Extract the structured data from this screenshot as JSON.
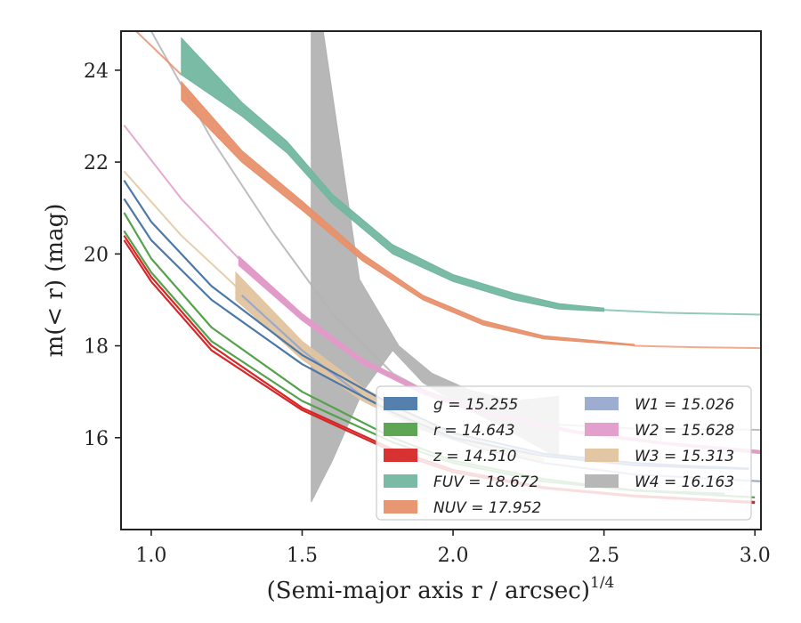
{
  "chart_data": {
    "type": "line",
    "xlabel": "(Semi-major axis r / arcsec)",
    "xlabel_sup": "1/4",
    "ylabel": "m(< r) (mag)",
    "xlim": [
      0.9,
      3.02
    ],
    "ylim": [
      24.85,
      14.0
    ],
    "xticks": [
      {
        "v": 1.0,
        "label": "1.0"
      },
      {
        "v": 1.5,
        "label": "1.5"
      },
      {
        "v": 2.0,
        "label": "2.0"
      },
      {
        "v": 2.5,
        "label": "2.5"
      },
      {
        "v": 3.0,
        "label": "3.0"
      }
    ],
    "yticks": [
      {
        "v": 16,
        "label": "16"
      },
      {
        "v": 18,
        "label": "18"
      },
      {
        "v": 20,
        "label": "20"
      },
      {
        "v": 22,
        "label": "22"
      },
      {
        "v": 24,
        "label": "24"
      }
    ],
    "legend_position": "lower-right",
    "series": [
      {
        "name": "g = 15.255",
        "color": "#4c78a8",
        "type": "line",
        "lines": [
          [
            [
              0.91,
              21.2
            ],
            [
              1.0,
              20.3
            ],
            [
              1.2,
              19.0
            ],
            [
              1.5,
              17.6
            ],
            [
              1.8,
              16.55
            ],
            [
              2.0,
              16.0
            ],
            [
              2.3,
              15.6
            ],
            [
              2.6,
              15.4
            ],
            [
              2.8,
              15.35
            ],
            [
              2.98,
              15.32
            ]
          ],
          [
            [
              0.91,
              21.6
            ],
            [
              1.0,
              20.7
            ],
            [
              1.2,
              19.3
            ],
            [
              1.5,
              17.8
            ],
            [
              1.8,
              16.7
            ],
            [
              2.0,
              16.1
            ],
            [
              2.3,
              15.65
            ],
            [
              2.6,
              15.45
            ],
            [
              2.8,
              15.38
            ],
            [
              2.98,
              15.33
            ]
          ]
        ]
      },
      {
        "name": "r = 14.643",
        "color": "#54a24b",
        "type": "line",
        "lines": [
          [
            [
              0.91,
              20.5
            ],
            [
              1.0,
              19.6
            ],
            [
              1.2,
              18.1
            ],
            [
              1.5,
              16.8
            ],
            [
              1.8,
              15.9
            ],
            [
              2.0,
              15.45
            ],
            [
              2.3,
              15.05
            ],
            [
              2.6,
              14.85
            ],
            [
              2.9,
              14.78
            ]
          ],
          [
            [
              0.91,
              20.9
            ],
            [
              1.0,
              19.9
            ],
            [
              1.2,
              18.4
            ],
            [
              1.5,
              17.0
            ],
            [
              1.8,
              16.0
            ],
            [
              2.0,
              15.5
            ],
            [
              2.3,
              15.1
            ],
            [
              2.6,
              14.85
            ],
            [
              3.0,
              14.7
            ]
          ]
        ]
      },
      {
        "name": "z = 14.510",
        "color": "#d62728",
        "type": "line",
        "lines": [
          [
            [
              0.91,
              20.3
            ],
            [
              1.0,
              19.4
            ],
            [
              1.2,
              17.9
            ],
            [
              1.5,
              16.6
            ],
            [
              1.8,
              15.7
            ],
            [
              2.0,
              15.25
            ],
            [
              2.3,
              14.9
            ],
            [
              2.6,
              14.72
            ],
            [
              3.0,
              14.58
            ]
          ],
          [
            [
              0.91,
              20.4
            ],
            [
              1.0,
              19.5
            ],
            [
              1.2,
              18.0
            ],
            [
              1.5,
              16.65
            ],
            [
              1.8,
              15.75
            ],
            [
              2.0,
              15.3
            ],
            [
              2.3,
              14.92
            ],
            [
              2.6,
              14.74
            ],
            [
              3.0,
              14.6
            ]
          ]
        ]
      },
      {
        "name": "FUV = 18.672",
        "color": "#72b7a0",
        "type": "band",
        "upper": [
          [
            1.1,
            23.9
          ],
          [
            1.3,
            23.0
          ],
          [
            1.45,
            22.2
          ],
          [
            1.6,
            21.1
          ],
          [
            1.8,
            20.0
          ],
          [
            2.0,
            19.4
          ],
          [
            2.2,
            19.0
          ],
          [
            2.35,
            18.8
          ],
          [
            2.5,
            18.75
          ]
        ],
        "lower": [
          [
            1.1,
            24.7
          ],
          [
            1.3,
            23.3
          ],
          [
            1.45,
            22.45
          ],
          [
            1.6,
            21.3
          ],
          [
            1.8,
            20.2
          ],
          [
            2.0,
            19.55
          ],
          [
            2.2,
            19.15
          ],
          [
            2.35,
            18.92
          ],
          [
            2.5,
            18.82
          ]
        ],
        "tail": [
          [
            2.5,
            18.78
          ],
          [
            2.7,
            18.72
          ],
          [
            3.02,
            18.68
          ]
        ]
      },
      {
        "name": "NUV = 17.952",
        "color": "#e8906c",
        "type": "band",
        "head": [
          [
            0.95,
            24.85
          ],
          [
            1.1,
            23.9
          ]
        ],
        "upper": [
          [
            1.1,
            23.35
          ],
          [
            1.3,
            22.0
          ],
          [
            1.5,
            20.95
          ],
          [
            1.7,
            19.85
          ],
          [
            1.9,
            19.0
          ],
          [
            2.1,
            18.45
          ],
          [
            2.3,
            18.15
          ],
          [
            2.6,
            18.0
          ]
        ],
        "lower": [
          [
            1.1,
            23.75
          ],
          [
            1.3,
            22.25
          ],
          [
            1.5,
            21.15
          ],
          [
            1.7,
            20.0
          ],
          [
            1.9,
            19.1
          ],
          [
            2.1,
            18.55
          ],
          [
            2.3,
            18.22
          ],
          [
            2.6,
            18.03
          ]
        ],
        "tail": [
          [
            2.6,
            18.0
          ],
          [
            2.8,
            17.97
          ],
          [
            3.02,
            17.95
          ]
        ]
      },
      {
        "name": "W1 = 15.026",
        "color": "#98a9cc",
        "type": "line",
        "lines": [
          [
            [
              1.3,
              19.1
            ],
            [
              1.5,
              17.9
            ],
            [
              1.7,
              16.9
            ],
            [
              1.9,
              16.2
            ],
            [
              2.1,
              15.75
            ],
            [
              2.3,
              15.45
            ],
            [
              2.6,
              15.2
            ],
            [
              3.02,
              15.05
            ]
          ]
        ]
      },
      {
        "name": "W2 = 15.628",
        "color": "#e29bc9",
        "type": "line",
        "head": [
          [
            0.91,
            22.8
          ],
          [
            1.1,
            21.2
          ],
          [
            1.29,
            19.9
          ]
        ],
        "band_upper": [
          [
            1.29,
            19.75
          ],
          [
            1.5,
            18.55
          ],
          [
            1.7,
            17.6
          ],
          [
            1.9,
            16.95
          ],
          [
            2.1,
            16.5
          ],
          [
            2.4,
            16.1
          ],
          [
            2.7,
            15.85
          ],
          [
            3.02,
            15.65
          ]
        ],
        "band_lower": [
          [
            1.29,
            19.95
          ],
          [
            1.5,
            18.7
          ],
          [
            1.7,
            17.72
          ],
          [
            1.9,
            17.05
          ],
          [
            2.1,
            16.58
          ],
          [
            2.4,
            16.16
          ],
          [
            2.7,
            15.9
          ],
          [
            3.02,
            15.72
          ]
        ]
      },
      {
        "name": "W3 = 15.313",
        "color": "#e2c49f",
        "type": "band",
        "head": [
          [
            0.91,
            21.8
          ],
          [
            1.1,
            20.4
          ],
          [
            1.28,
            19.3
          ]
        ],
        "upper": [
          [
            1.28,
            19.0
          ],
          [
            1.5,
            17.7
          ],
          [
            1.7,
            16.8
          ],
          [
            1.9,
            16.15
          ],
          [
            2.1,
            15.75
          ],
          [
            2.3,
            15.45
          ]
        ],
        "lower": [
          [
            1.28,
            19.6
          ],
          [
            1.5,
            18.1
          ],
          [
            1.7,
            17.1
          ],
          [
            1.9,
            16.35
          ],
          [
            2.1,
            15.9
          ],
          [
            2.3,
            15.55
          ]
        ]
      },
      {
        "name": "W4 = 16.163",
        "color": "#b3b3b3",
        "type": "band",
        "head": [
          [
            1.0,
            24.85
          ],
          [
            1.2,
            22.5
          ],
          [
            1.4,
            20.5
          ],
          [
            1.6,
            18.7
          ],
          [
            1.8,
            17.4
          ],
          [
            2.0,
            16.7
          ],
          [
            2.3,
            16.3
          ],
          [
            2.6,
            16.2
          ],
          [
            3.02,
            16.17
          ]
        ],
        "upper": [
          [
            1.53,
            14.6
          ],
          [
            1.6,
            15.5
          ],
          [
            1.7,
            17.0
          ],
          [
            1.8,
            17.9
          ],
          [
            1.9,
            17.2
          ],
          [
            2.0,
            16.8
          ],
          [
            2.1,
            16.45
          ],
          [
            2.2,
            16.1
          ],
          [
            2.35,
            15.55
          ]
        ],
        "lower": [
          [
            1.53,
            24.85
          ],
          [
            1.57,
            24.85
          ],
          [
            1.69,
            19.45
          ],
          [
            1.82,
            18.0
          ],
          [
            1.93,
            17.4
          ],
          [
            2.05,
            17.05
          ],
          [
            2.2,
            16.8
          ],
          [
            2.35,
            16.9
          ]
        ]
      }
    ],
    "legend": {
      "col1": [
        "g = 15.255",
        "r = 14.643",
        "z = 14.510",
        "FUV = 18.672",
        "NUV = 17.952"
      ],
      "col2": [
        "W1 = 15.026",
        "W2 = 15.628",
        "W3 = 15.313",
        "W4 = 16.163"
      ]
    }
  }
}
